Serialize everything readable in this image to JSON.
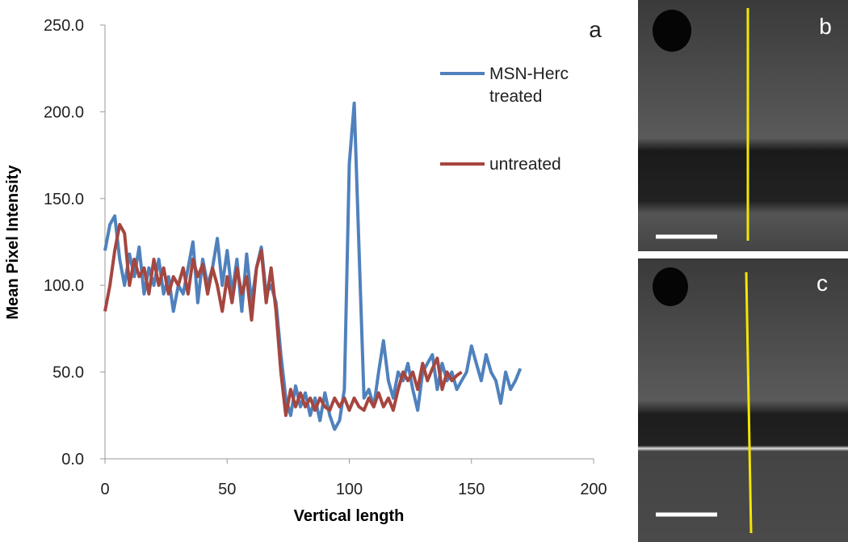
{
  "chart_data": {
    "type": "line",
    "x_label": "Vertical length",
    "y_label": "Mean Pixel Intensity",
    "annotations": [
      "a"
    ],
    "xlim": [
      0,
      200
    ],
    "xticks": [
      0,
      50,
      100,
      150,
      200
    ],
    "ylim": [
      0,
      250
    ],
    "yticks": [
      {
        "value": 0,
        "label": "0.0"
      },
      {
        "value": 50,
        "label": "50.0"
      },
      {
        "value": 100,
        "label": "100.0"
      },
      {
        "value": 150,
        "label": "150.0"
      },
      {
        "value": 200,
        "label": "200.0"
      },
      {
        "value": 250,
        "label": "250.0"
      }
    ],
    "grid": false,
    "series": [
      {
        "name": "MSN-Herc treated",
        "color": "#4f81bd",
        "x": [
          0,
          2,
          4,
          6,
          8,
          10,
          12,
          14,
          16,
          18,
          20,
          22,
          24,
          26,
          28,
          30,
          32,
          34,
          36,
          38,
          40,
          42,
          44,
          46,
          48,
          50,
          52,
          54,
          56,
          58,
          60,
          62,
          64,
          66,
          68,
          70,
          72,
          74,
          76,
          78,
          80,
          82,
          84,
          86,
          88,
          90,
          92,
          94,
          96,
          98,
          100,
          102,
          104,
          106,
          108,
          110,
          112,
          114,
          116,
          118,
          120,
          122,
          124,
          126,
          128,
          130,
          132,
          134,
          136,
          138,
          140,
          142,
          144,
          146,
          148,
          150,
          152,
          154,
          156,
          158,
          160,
          162,
          164,
          166,
          168,
          170
        ],
        "values": [
          120,
          135,
          140,
          115,
          100,
          118,
          105,
          122,
          95,
          110,
          100,
          115,
          95,
          105,
          85,
          100,
          95,
          110,
          125,
          90,
          115,
          100,
          110,
          127,
          100,
          120,
          95,
          115,
          85,
          118,
          90,
          110,
          122,
          95,
          100,
          90,
          60,
          35,
          25,
          42,
          30,
          38,
          25,
          35,
          22,
          38,
          25,
          17,
          22,
          40,
          170,
          205,
          120,
          35,
          40,
          30,
          50,
          68,
          45,
          35,
          50,
          45,
          55,
          40,
          28,
          50,
          55,
          60,
          40,
          55,
          45,
          50,
          40,
          45,
          50,
          65,
          55,
          45,
          60,
          50,
          45,
          32,
          50,
          40,
          45,
          52
        ]
      },
      {
        "name": "untreated",
        "color": "#a5463f",
        "x": [
          0,
          2,
          4,
          6,
          8,
          10,
          12,
          14,
          16,
          18,
          20,
          22,
          24,
          26,
          28,
          30,
          32,
          34,
          36,
          38,
          40,
          42,
          44,
          46,
          48,
          50,
          52,
          54,
          56,
          58,
          60,
          62,
          64,
          66,
          68,
          70,
          72,
          74,
          76,
          78,
          80,
          82,
          84,
          86,
          88,
          90,
          92,
          94,
          96,
          98,
          100,
          102,
          104,
          106,
          108,
          110,
          112,
          114,
          116,
          118,
          120,
          122,
          124,
          126,
          128,
          130,
          132,
          134,
          136,
          138,
          140,
          142,
          144,
          146
        ],
        "values": [
          85,
          100,
          120,
          135,
          130,
          100,
          115,
          105,
          110,
          95,
          115,
          100,
          110,
          95,
          105,
          100,
          110,
          95,
          115,
          105,
          112,
          95,
          110,
          100,
          85,
          105,
          90,
          110,
          95,
          105,
          80,
          110,
          120,
          90,
          110,
          85,
          50,
          25,
          40,
          30,
          38,
          30,
          35,
          28,
          35,
          30,
          28,
          35,
          30,
          35,
          28,
          35,
          30,
          28,
          35,
          30,
          38,
          30,
          35,
          28,
          40,
          50,
          45,
          50,
          40,
          55,
          45,
          52,
          58,
          40,
          50,
          45,
          48,
          50
        ]
      }
    ]
  },
  "images": [
    {
      "label": "b"
    },
    {
      "label": "c"
    }
  ]
}
